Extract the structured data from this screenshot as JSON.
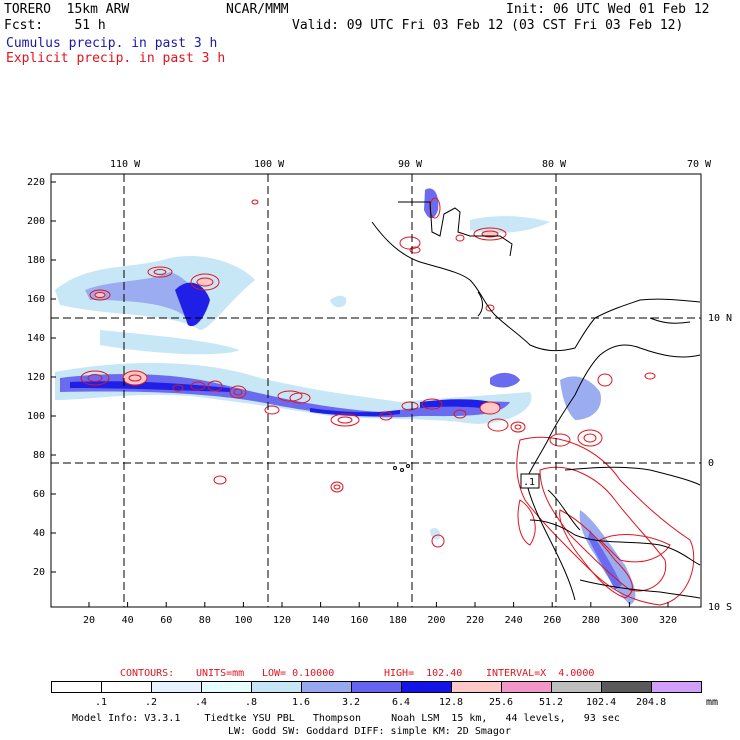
{
  "header": {
    "model_name": "TORERO  15km ARW",
    "org": "NCAR/MMM",
    "init": "Init: 06 UTC Wed 01 Feb 12",
    "fcst": "Fcst:    51 h",
    "valid": "Valid: 09 UTC Fri 03 Feb 12 (03 CST Fri 03 Feb 12)",
    "legend_cumulus": "Cumulus precip. in past 3 h",
    "legend_explicit": "Explicit precip. in past 3 h"
  },
  "axes": {
    "top_labels": [
      "110 W",
      "100 W",
      "90 W",
      "80 W",
      "70 W"
    ],
    "right_labels": [
      "10 N",
      "0",
      "10 S"
    ],
    "left_ticks": [
      "220",
      "200",
      "180",
      "160",
      "140",
      "120",
      "100",
      "80",
      "60",
      "40",
      "20"
    ],
    "bottom_ticks": [
      "20",
      "40",
      "60",
      "80",
      "100",
      "120",
      "140",
      "160",
      "180",
      "200",
      "220",
      "240",
      "260",
      "280",
      "300",
      "320"
    ]
  },
  "map_labels": {
    "box_label": ".1"
  },
  "contour_info": {
    "contours": "CONTOURS:",
    "units": "UNITS=mm",
    "low": "LOW= 0.10000",
    "high": "HIGH=  102.40",
    "interval": "INTERVAL=X  4.0000"
  },
  "colorbar": {
    "labels": [
      ".1",
      ".2",
      ".4",
      ".8",
      "1.6",
      "3.2",
      "6.4",
      "12.8",
      "25.6",
      "51.2",
      "102.4",
      "204.8"
    ],
    "unit": "mm",
    "colors": [
      "#ffffff",
      "#ffffff",
      "#e6f2ff",
      "#e6ffff",
      "#c6e6f6",
      "#96a8f0",
      "#6464f0",
      "#1414e6",
      "#ffc8c8",
      "#f496c8",
      "#bebebe",
      "#5a5a5a",
      "#d2a0fa"
    ]
  },
  "footer": {
    "line1": "Model Info: V3.3.1    Tiedtke YSU PBL   Thompson     Noah LSM  15 km,   44 levels,   93 sec",
    "line2": "LW: Godd SW: Goddard DIFF: simple KM: 2D Smagor"
  }
}
